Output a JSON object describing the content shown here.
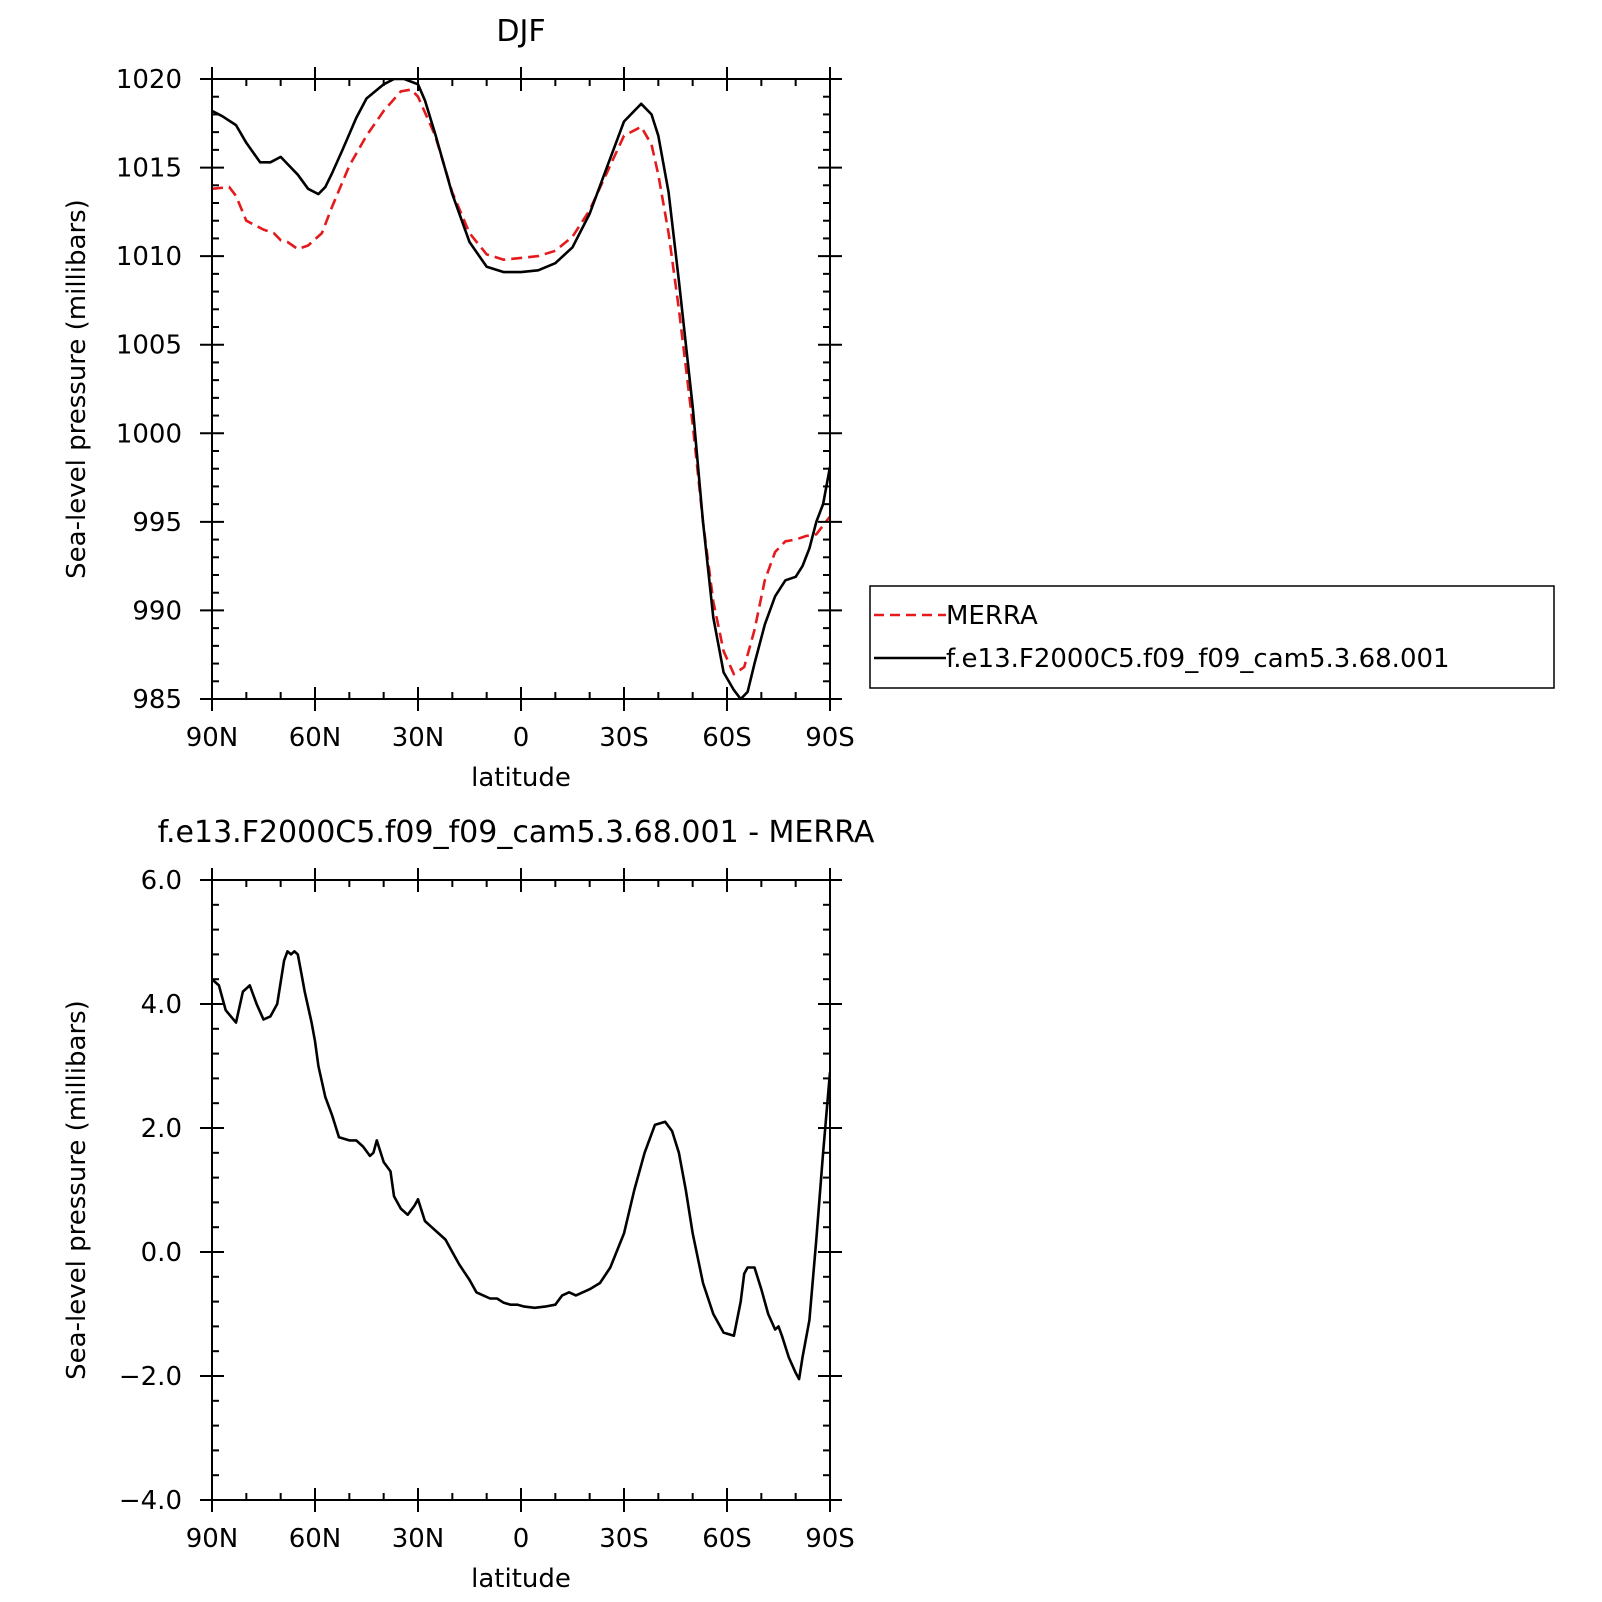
{
  "chart_data": [
    {
      "type": "line",
      "title": "DJF",
      "xlabel": "latitude",
      "ylabel": "Sea-level pressure (millibars)",
      "xlim": [
        -90,
        90
      ],
      "ylim": [
        985,
        1020
      ],
      "x_ticks": [
        -90,
        -60,
        -30,
        0,
        30,
        60,
        90
      ],
      "x_tick_labels": [
        "90N",
        "60N",
        "30N",
        "0",
        "30S",
        "60S",
        "90S"
      ],
      "y_ticks": [
        985,
        990,
        995,
        1000,
        1005,
        1010,
        1015,
        1020
      ],
      "y_tick_labels": [
        "985",
        "990",
        "995",
        "1000",
        "1005",
        "1010",
        "1015",
        "1020"
      ],
      "legend_position": "right",
      "series": [
        {
          "name": "MERRA",
          "color": "#e41a1c",
          "dash": "dashed",
          "x": [
            -90,
            -85,
            -83,
            -80,
            -75,
            -72,
            -70,
            -68,
            -65,
            -62,
            -58,
            -55,
            -50,
            -45,
            -40,
            -35,
            -32,
            -30,
            -25,
            -20,
            -15,
            -10,
            -5,
            0,
            5,
            10,
            15,
            20,
            25,
            30,
            35,
            38,
            40,
            43,
            46,
            50,
            53,
            56,
            59,
            62,
            65,
            68,
            71,
            74,
            77,
            80,
            83,
            86,
            90
          ],
          "y": [
            1013.8,
            1013.9,
            1013.4,
            1012.0,
            1011.5,
            1011.3,
            1010.9,
            1010.8,
            1010.4,
            1010.6,
            1011.3,
            1012.8,
            1015.1,
            1016.8,
            1018.2,
            1019.3,
            1019.4,
            1019.0,
            1016.8,
            1013.6,
            1011.3,
            1010.1,
            1009.8,
            1009.9,
            1010.0,
            1010.3,
            1011.1,
            1012.6,
            1014.7,
            1016.8,
            1017.3,
            1016.3,
            1014.6,
            1011.3,
            1007.0,
            1000.5,
            995.0,
            990.5,
            987.7,
            986.4,
            986.8,
            988.9,
            991.7,
            993.3,
            993.9,
            994.0,
            994.2,
            994.3,
            995.3
          ]
        },
        {
          "name": "f.e13.F2000C5.f09_f09_cam5.3.68.001",
          "color": "#000000",
          "dash": "solid",
          "x": [
            -90,
            -87,
            -83,
            -80,
            -76,
            -73,
            -70,
            -68,
            -65,
            -62,
            -59,
            -57,
            -55,
            -52,
            -48,
            -45,
            -40,
            -37,
            -34,
            -30,
            -28,
            -25,
            -20,
            -15,
            -10,
            -5,
            0,
            5,
            10,
            15,
            20,
            25,
            30,
            35,
            38,
            40,
            43,
            46,
            50,
            53,
            56,
            59,
            62,
            64,
            66,
            68,
            71,
            74,
            77,
            80,
            82,
            84,
            86,
            88,
            90
          ],
          "y": [
            1018.2,
            1017.9,
            1017.4,
            1016.4,
            1015.3,
            1015.3,
            1015.6,
            1015.2,
            1014.6,
            1013.8,
            1013.5,
            1013.9,
            1014.7,
            1016.0,
            1017.8,
            1018.9,
            1019.7,
            1020.0,
            1020.0,
            1019.7,
            1018.8,
            1016.9,
            1013.5,
            1010.8,
            1009.4,
            1009.1,
            1009.1,
            1009.2,
            1009.6,
            1010.5,
            1012.4,
            1015.0,
            1017.6,
            1018.6,
            1018.0,
            1016.8,
            1013.6,
            1008.6,
            1001.5,
            995.0,
            989.6,
            986.5,
            985.5,
            985.0,
            985.4,
            987.0,
            989.2,
            990.8,
            991.7,
            991.9,
            992.5,
            993.5,
            995.0,
            996.0,
            998.1
          ]
        }
      ]
    },
    {
      "type": "line",
      "title": "f.e13.F2000C5.f09_f09_cam5.3.68.001 - MERRA",
      "xlabel": "latitude",
      "ylabel": "Sea-level pressure (millibars)",
      "xlim": [
        -90,
        90
      ],
      "ylim": [
        -4,
        6
      ],
      "x_ticks": [
        -90,
        -60,
        -30,
        0,
        30,
        60,
        90
      ],
      "x_tick_labels": [
        "90N",
        "60N",
        "30N",
        "0",
        "30S",
        "60S",
        "90S"
      ],
      "y_ticks": [
        -4,
        -2,
        0,
        2,
        4,
        6
      ],
      "y_tick_labels": [
        "−4.0",
        "−2.0",
        "0.0",
        "2.0",
        "4.0",
        "6.0"
      ],
      "series": [
        {
          "color": "#000000",
          "dash": "solid",
          "x": [
            -90,
            -88,
            -86,
            -83,
            -81,
            -79,
            -77,
            -75,
            -73,
            -71,
            -69,
            -68,
            -67,
            -66,
            -65,
            -64,
            -63,
            -61,
            -60,
            -59,
            -57,
            -55,
            -53,
            -50,
            -48,
            -46,
            -44,
            -43,
            -42,
            -40,
            -38,
            -37,
            -35,
            -33,
            -31,
            -30,
            -28,
            -26,
            -24,
            -22,
            -20,
            -18,
            -15,
            -13,
            -11,
            -9,
            -7,
            -5,
            -3,
            -1,
            1,
            4,
            7,
            10,
            12,
            14,
            16,
            18,
            20,
            23,
            26,
            30,
            33,
            36,
            39,
            42,
            44,
            46,
            48,
            50,
            53,
            56,
            59,
            62,
            64,
            65,
            66,
            68,
            70,
            72,
            74,
            75,
            76,
            78,
            80,
            81,
            82,
            84,
            86,
            88,
            90
          ],
          "y": [
            4.4,
            4.3,
            3.9,
            3.7,
            4.2,
            4.3,
            4.0,
            3.75,
            3.8,
            4.0,
            4.7,
            4.85,
            4.8,
            4.85,
            4.8,
            4.5,
            4.2,
            3.7,
            3.4,
            3.0,
            2.5,
            2.2,
            1.85,
            1.8,
            1.8,
            1.7,
            1.55,
            1.6,
            1.8,
            1.45,
            1.3,
            0.9,
            0.7,
            0.6,
            0.75,
            0.85,
            0.5,
            0.4,
            0.3,
            0.2,
            0.0,
            -0.2,
            -0.45,
            -0.65,
            -0.7,
            -0.75,
            -0.75,
            -0.82,
            -0.85,
            -0.85,
            -0.88,
            -0.9,
            -0.88,
            -0.85,
            -0.7,
            -0.65,
            -0.7,
            -0.65,
            -0.6,
            -0.5,
            -0.25,
            0.3,
            1.0,
            1.6,
            2.05,
            2.1,
            1.95,
            1.6,
            1.0,
            0.3,
            -0.5,
            -1.0,
            -1.3,
            -1.35,
            -0.8,
            -0.35,
            -0.25,
            -0.25,
            -0.6,
            -1.0,
            -1.25,
            -1.2,
            -1.35,
            -1.7,
            -1.95,
            -2.05,
            -1.7,
            -1.1,
            0.2,
            1.6,
            2.9
          ]
        }
      ]
    }
  ]
}
